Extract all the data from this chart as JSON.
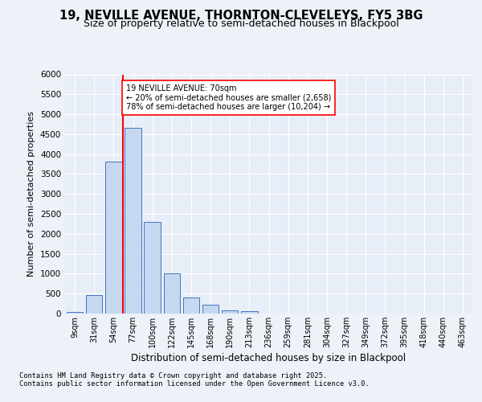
{
  "title_line1": "19, NEVILLE AVENUE, THORNTON-CLEVELEYS, FY5 3BG",
  "title_line2": "Size of property relative to semi-detached houses in Blackpool",
  "xlabel": "Distribution of semi-detached houses by size in Blackpool",
  "ylabel": "Number of semi-detached properties",
  "categories": [
    "9sqm",
    "31sqm",
    "54sqm",
    "77sqm",
    "100sqm",
    "122sqm",
    "145sqm",
    "168sqm",
    "190sqm",
    "213sqm",
    "236sqm",
    "259sqm",
    "281sqm",
    "304sqm",
    "327sqm",
    "349sqm",
    "372sqm",
    "395sqm",
    "418sqm",
    "440sqm",
    "463sqm"
  ],
  "values": [
    50,
    460,
    3820,
    4650,
    2300,
    1000,
    400,
    220,
    90,
    65,
    5,
    2,
    2,
    0,
    0,
    0,
    0,
    0,
    0,
    0,
    0
  ],
  "bar_color": "#c5d8f0",
  "bar_edge_color": "#4472c4",
  "vline_color": "red",
  "property_label": "19 NEVILLE AVENUE: 70sqm",
  "pct_smaller": 20,
  "count_smaller": 2658,
  "pct_larger": 78,
  "count_larger": 10204,
  "ylim": [
    0,
    6000
  ],
  "yticks": [
    0,
    500,
    1000,
    1500,
    2000,
    2500,
    3000,
    3500,
    4000,
    4500,
    5000,
    5500,
    6000
  ],
  "bg_color": "#e8eef7",
  "grid_color": "#ffffff",
  "footer_line1": "Contains HM Land Registry data © Crown copyright and database right 2025.",
  "footer_line2": "Contains public sector information licensed under the Open Government Licence v3.0.",
  "fig_bg_color": "#edf1f8"
}
